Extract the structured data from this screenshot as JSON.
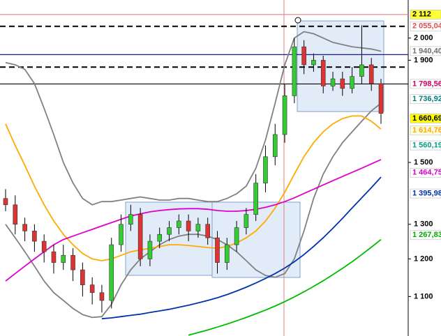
{
  "chart_data": {
    "type": "candlestick",
    "log_scale": true,
    "ylim": [
      1004,
      2184
    ],
    "yticks": [
      {
        "value": 2000,
        "label": "2 000"
      },
      {
        "value": 1900,
        "label": "1 900"
      },
      {
        "value": 1500,
        "label": "1 500"
      },
      {
        "value": 1300,
        "label": "1 300"
      },
      {
        "value": 1200,
        "label": "1 200"
      },
      {
        "value": 1100,
        "label": "1 100"
      }
    ],
    "open": [
      1380,
      1360,
      1300,
      1280,
      1250,
      1220,
      1190,
      1210,
      1170,
      1130,
      1110,
      1090,
      1240,
      1300,
      1330,
      1200,
      1250,
      1270,
      1290,
      1310,
      1280,
      1300,
      1260,
      1190,
      1240,
      1290,
      1330,
      1430,
      1520,
      1600,
      1750,
      1960,
      1880,
      1900,
      1790,
      1820,
      1780,
      1830,
      1880,
      1800
    ],
    "high": [
      1410,
      1390,
      1320,
      1300,
      1270,
      1240,
      1240,
      1230,
      1190,
      1150,
      1130,
      1260,
      1330,
      1360,
      1350,
      1270,
      1290,
      1310,
      1330,
      1330,
      1320,
      1320,
      1280,
      1260,
      1310,
      1350,
      1460,
      1560,
      1640,
      1800,
      2000,
      1990,
      1930,
      1920,
      1850,
      1850,
      1870,
      2060,
      1910,
      1820
    ],
    "low": [
      1340,
      1270,
      1250,
      1220,
      1190,
      1160,
      1170,
      1140,
      1100,
      1080,
      1060,
      1070,
      1220,
      1280,
      1180,
      1180,
      1230,
      1250,
      1270,
      1250,
      1260,
      1240,
      1160,
      1170,
      1220,
      1270,
      1310,
      1400,
      1490,
      1570,
      1720,
      1840,
      1850,
      1760,
      1770,
      1750,
      1760,
      1800,
      1770,
      1640
    ],
    "close": [
      1360,
      1300,
      1280,
      1250,
      1220,
      1190,
      1210,
      1170,
      1130,
      1110,
      1090,
      1240,
      1300,
      1330,
      1200,
      1250,
      1270,
      1290,
      1310,
      1280,
      1300,
      1260,
      1190,
      1240,
      1290,
      1330,
      1430,
      1520,
      1600,
      1750,
      1960,
      1880,
      1900,
      1790,
      1820,
      1780,
      1830,
      1880,
      1800,
      1680
    ],
    "up_color": "#33cc33",
    "down_color": "#dd3333",
    "series": [
      {
        "color": "#808080",
        "values": [
          1890,
          1880,
          1860,
          1800,
          1700,
          1600,
          1500,
          1430,
          1380,
          1360,
          1370,
          1370,
          1375,
          1380,
          1385,
          1380,
          1375,
          1375,
          1380,
          1380,
          1375,
          1370,
          1370,
          1380,
          1395,
          1420,
          1480,
          1580,
          1720,
          1880,
          2000,
          2030,
          2020,
          2000,
          1980,
          1970,
          1960,
          1955,
          1950,
          1940
        ]
      },
      {
        "color": "#808080",
        "values": [
          1300,
          1260,
          1220,
          1180,
          1140,
          1110,
          1090,
          1070,
          1055,
          1048,
          1050,
          1080,
          1130,
          1170,
          1200,
          1220,
          1240,
          1255,
          1265,
          1270,
          1270,
          1265,
          1255,
          1240,
          1220,
          1195,
          1170,
          1155,
          1150,
          1160,
          1200,
          1280,
          1380,
          1460,
          1520,
          1570,
          1610,
          1650,
          1690,
          1720
        ]
      },
      {
        "color": "#ffaa00",
        "values": [
          1640,
          1560,
          1490,
          1420,
          1360,
          1310,
          1270,
          1240,
          1215,
          1200,
          1195,
          1200,
          1210,
          1220,
          1225,
          1230,
          1235,
          1240,
          1240,
          1238,
          1235,
          1232,
          1230,
          1235,
          1245,
          1260,
          1280,
          1310,
          1350,
          1400,
          1460,
          1520,
          1570,
          1610,
          1640,
          1660,
          1670,
          1670,
          1650,
          1620
        ]
      },
      {
        "color": "#dd00cc",
        "values": [
          1140,
          1160,
          1180,
          1200,
          1220,
          1240,
          1255,
          1265,
          1275,
          1285,
          1295,
          1305,
          1315,
          1325,
          1332,
          1338,
          1342,
          1345,
          1347,
          1348,
          1348,
          1346,
          1342,
          1340,
          1340,
          1342,
          1346,
          1352,
          1360,
          1370,
          1382,
          1396,
          1410,
          1424,
          1438,
          1452,
          1466,
          1480,
          1495,
          1510
        ]
      },
      {
        "color": "#0033aa",
        "values": [
          null,
          null,
          null,
          null,
          null,
          null,
          null,
          null,
          null,
          null,
          1045,
          1047,
          1050,
          1053,
          1056,
          1060,
          1064,
          1068,
          1073,
          1078,
          1084,
          1090,
          1097,
          1105,
          1114,
          1124,
          1135,
          1147,
          1160,
          1175,
          1192,
          1212,
          1235,
          1260,
          1288,
          1318,
          1350,
          1382,
          1415,
          1450
        ]
      },
      {
        "color": "#00bb00",
        "values": [
          null,
          null,
          null,
          null,
          null,
          null,
          null,
          null,
          null,
          null,
          null,
          null,
          null,
          null,
          null,
          null,
          null,
          null,
          null,
          1006,
          1012,
          1018,
          1025,
          1032,
          1040,
          1048,
          1057,
          1066,
          1076,
          1087,
          1099,
          1112,
          1126,
          1141,
          1157,
          1174,
          1192,
          1212,
          1233,
          1255
        ]
      }
    ],
    "levels": [
      {
        "value": 2112,
        "color": "#e08080",
        "dash": false
      },
      {
        "value": 2055.04,
        "color": "#000000",
        "dash": true
      },
      {
        "value": 1925,
        "color": "#000080",
        "dash": false
      },
      {
        "value": 1870,
        "color": "#000000",
        "dash": true
      },
      {
        "value": 1798.56,
        "color": "#000000",
        "dash": false
      }
    ],
    "price_labels": [
      {
        "value": 2112,
        "label": "2 112",
        "color": "#000000",
        "background": "#ffff33"
      },
      {
        "value": 2055.04,
        "label": "2 055,04",
        "color": "#e05050",
        "background": "#ffffff"
      },
      {
        "value": 1940.4,
        "label": "1 940,40",
        "color": "#707070",
        "background": "#ffffff"
      },
      {
        "value": 1798.56,
        "label": "1 798,56",
        "color": "#cc0066",
        "background": "#ffffff"
      },
      {
        "value": 1736.92,
        "label": "1 736,92",
        "color": "#008080",
        "background": "#ffffff"
      },
      {
        "value": 1660.69,
        "label": "1 660,69",
        "color": "#000000",
        "background": "#ffff00"
      },
      {
        "value": 1614.76,
        "label": "1 614,76",
        "color": "#ffaa00",
        "background": "#fffde0"
      },
      {
        "value": 1560.19,
        "label": "1 560,19",
        "color": "#00a080",
        "background": "#ffffff"
      },
      {
        "value": 1464.75,
        "label": "1 464,75",
        "color": "#dd00cc",
        "background": "#ffffff"
      },
      {
        "value": 1395.98,
        "label": "1 395,98",
        "color": "#0033aa",
        "background": "#ffffff"
      },
      {
        "value": 1267.83,
        "label": "1 267,83",
        "color": "#00aa00",
        "background": "#ffffff"
      }
    ]
  }
}
